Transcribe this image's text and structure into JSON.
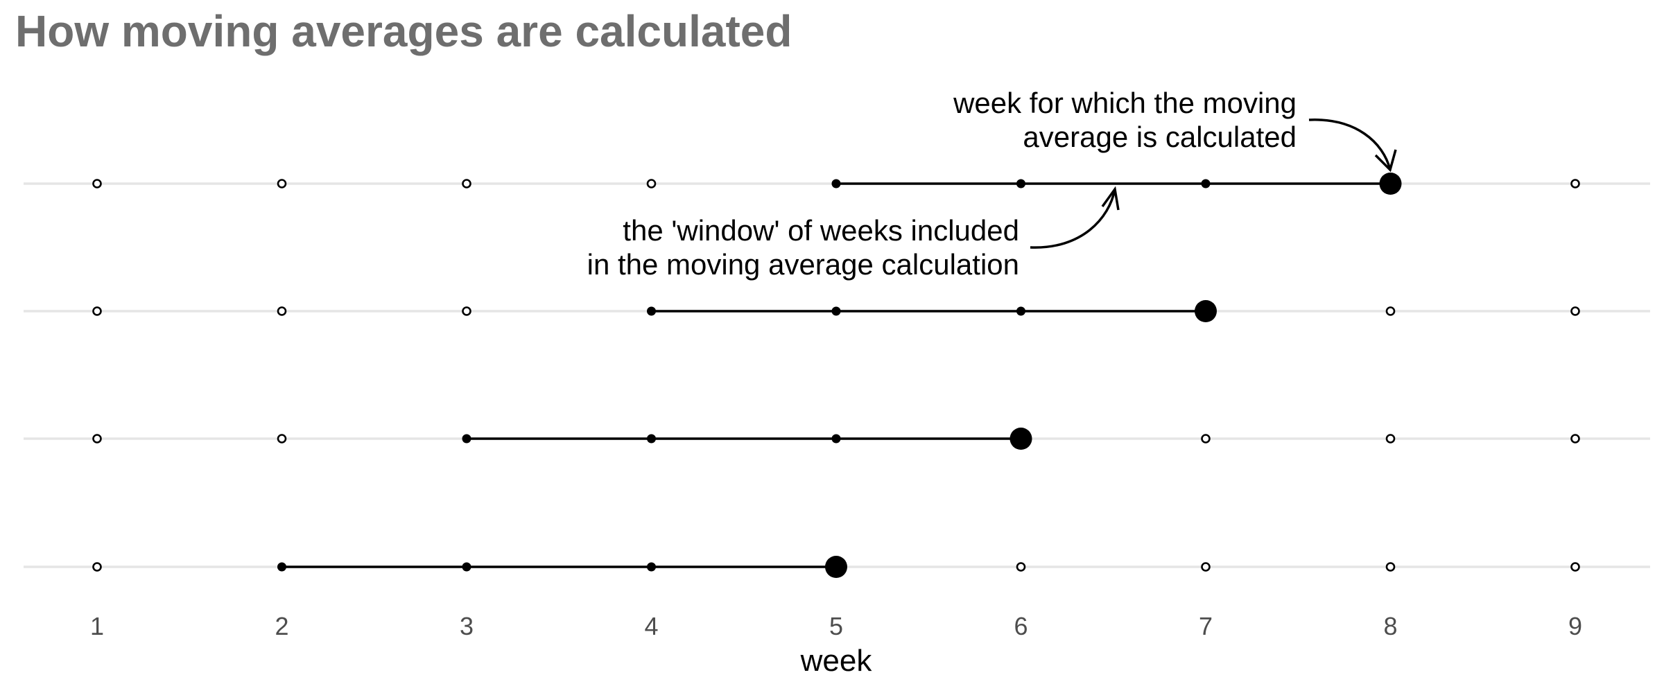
{
  "chart_data": {
    "type": "scatter",
    "title": "How moving averages are calculated",
    "xlabel": "week",
    "ylabel": "",
    "x_ticks": [
      "1",
      "2",
      "3",
      "4",
      "5",
      "6",
      "7",
      "8",
      "9"
    ],
    "xlim": [
      1,
      9
    ],
    "grid": true,
    "legend": "none",
    "window_size": 4,
    "rows": [
      {
        "target_week": 8,
        "window_weeks": [
          5,
          6,
          7,
          8
        ]
      },
      {
        "target_week": 7,
        "window_weeks": [
          4,
          5,
          6,
          7
        ]
      },
      {
        "target_week": 6,
        "window_weeks": [
          3,
          4,
          5,
          6
        ]
      },
      {
        "target_week": 5,
        "window_weeks": [
          2,
          3,
          4,
          5
        ]
      }
    ],
    "annotations": [
      {
        "lines": [
          "week for which the moving",
          "average is calculated"
        ],
        "points_to": "target week (week 8)"
      },
      {
        "lines": [
          "the 'window' of weeks included",
          "in the moving average calculation"
        ],
        "points_to": "window of weeks 5 to 8"
      }
    ]
  },
  "colors": {
    "title": "#6e6e6e",
    "grid": "#e5e5e5",
    "marks": "#000000",
    "tick_text": "#4d4d4d",
    "label_text": "#000000"
  }
}
